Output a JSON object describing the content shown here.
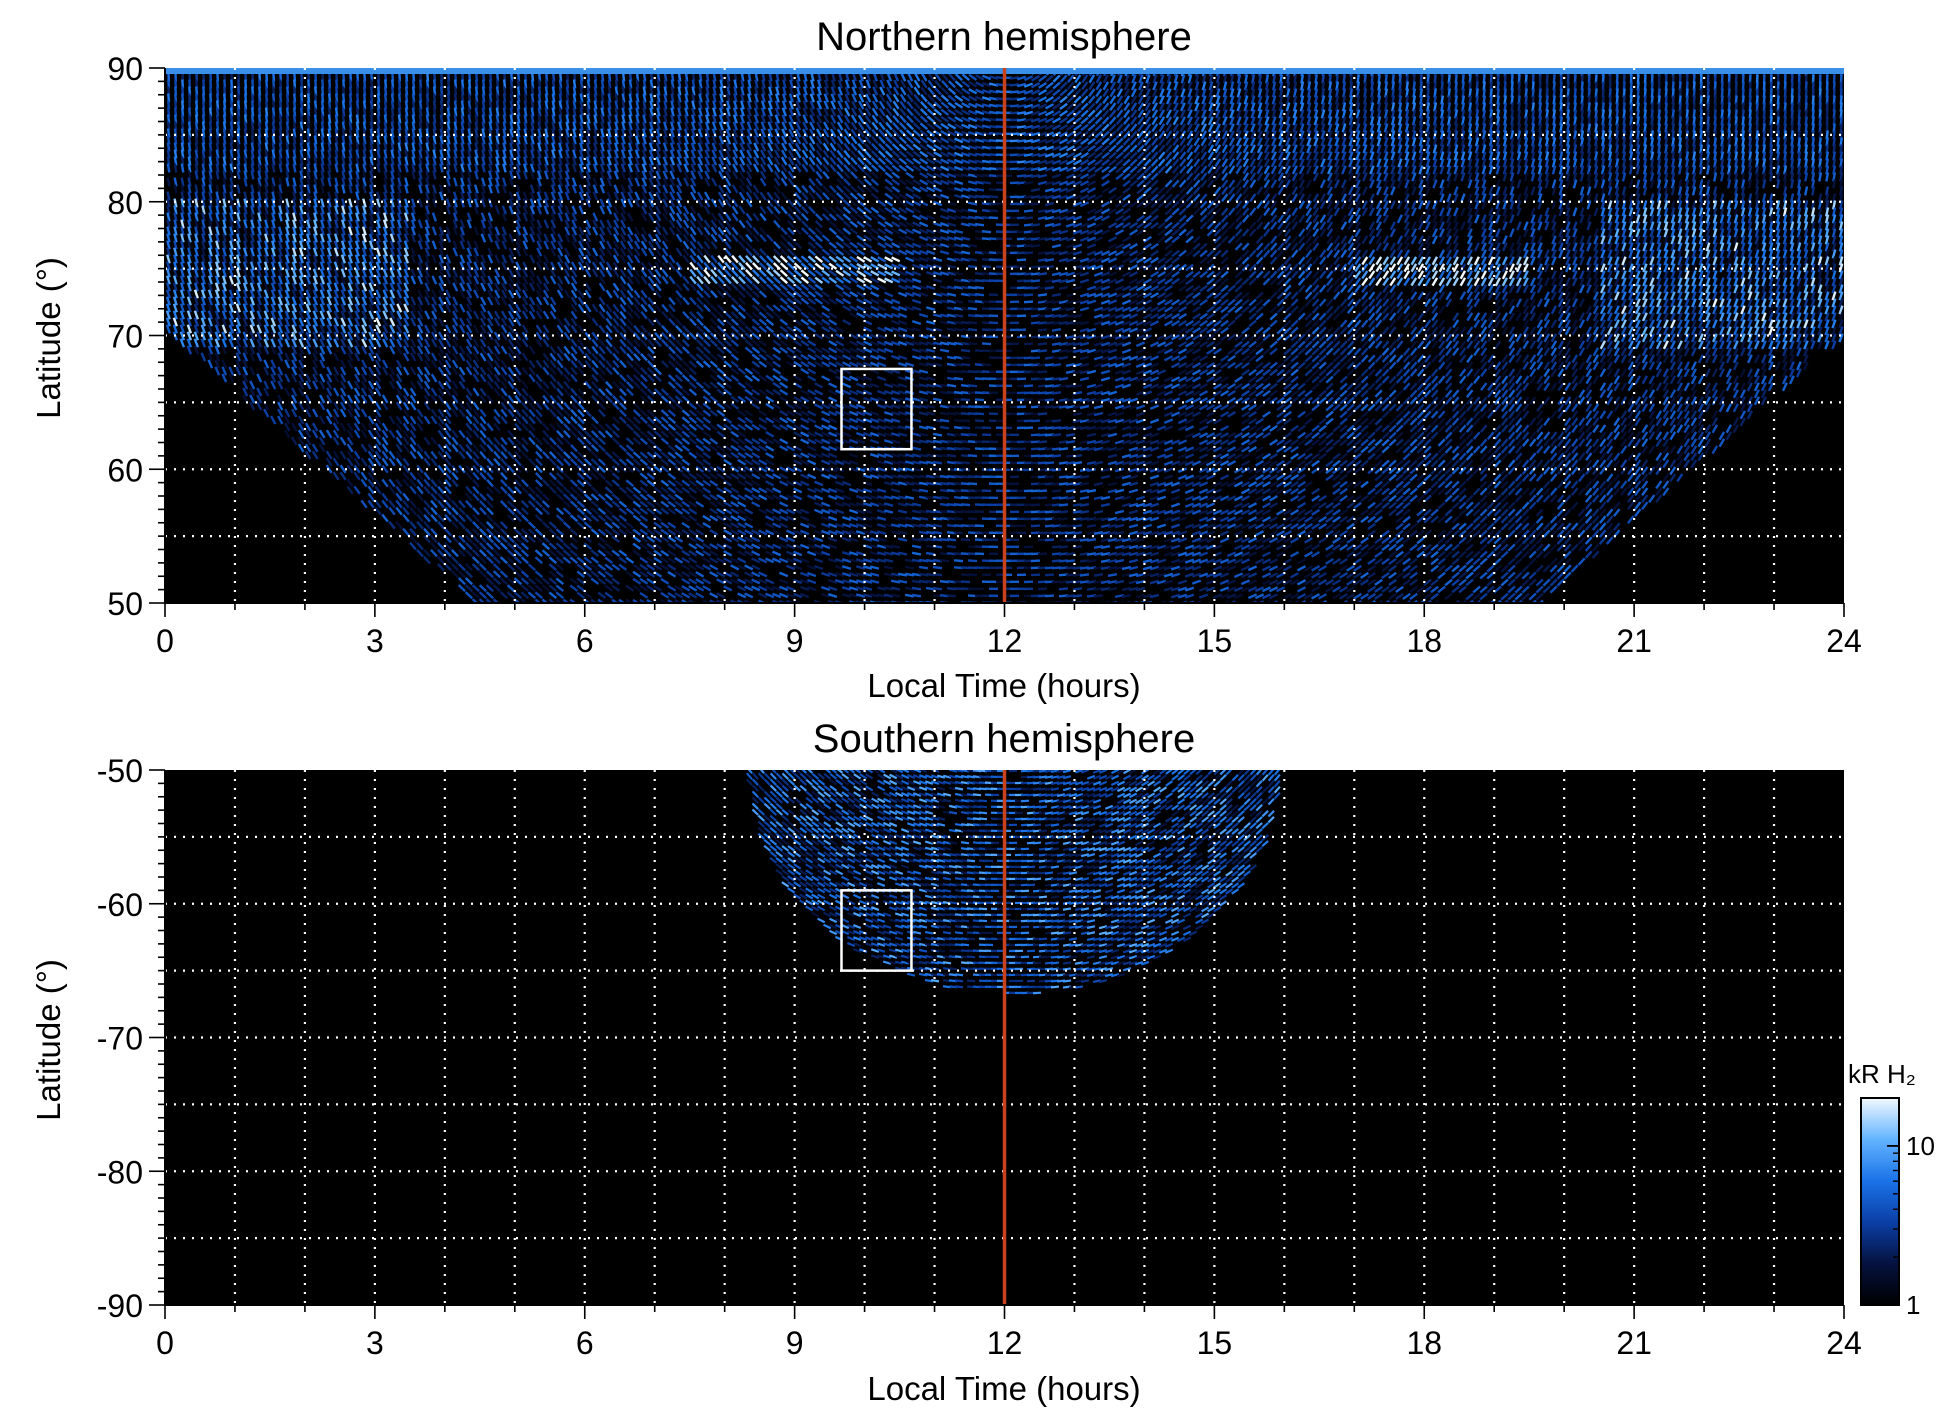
{
  "chart_data": [
    {
      "type": "heatmap",
      "title": "Northern hemisphere",
      "xlabel": "Local Time (hours)",
      "ylabel": "Latitude (°)",
      "xlim": [
        0,
        24
      ],
      "ylim": [
        50,
        90
      ],
      "xticks": [
        0,
        3,
        6,
        9,
        12,
        15,
        18,
        21,
        24
      ],
      "yticks": [
        50,
        60,
        70,
        80,
        90
      ],
      "grid": true,
      "grid_x_step_hours": 1,
      "grid_y_step_deg": 5,
      "noon_line_local_time": 12,
      "box": {
        "x_range": [
          9.67,
          10.67
        ],
        "y_range": [
          61.5,
          67.5
        ]
      },
      "features": [
        {
          "name": "bright auroral band",
          "local_time_range": [
            7.5,
            10.5
          ],
          "latitude": 75
        },
        {
          "name": "bright auroral band",
          "local_time_range": [
            17.0,
            19.5
          ],
          "latitude": 74.5
        },
        {
          "name": "bright emission near limb",
          "local_time_range": [
            0,
            3
          ],
          "latitude_range": [
            71,
            80
          ]
        },
        {
          "name": "bright emission near limb",
          "local_time_range": [
            21,
            24
          ],
          "latitude_range": [
            69,
            80
          ]
        }
      ]
    },
    {
      "type": "heatmap",
      "title": "Southern hemisphere",
      "xlabel": "Local Time (hours)",
      "ylabel": "Latitude (°)",
      "xlim": [
        0,
        24
      ],
      "ylim": [
        -90,
        -50
      ],
      "xticks": [
        0,
        3,
        6,
        9,
        12,
        15,
        18,
        21,
        24
      ],
      "yticks": [
        -90,
        -80,
        -70,
        -60,
        -50
      ],
      "grid": true,
      "grid_x_step_hours": 1,
      "grid_y_step_deg": 5,
      "noon_line_local_time": 12,
      "box": {
        "x_range": [
          9.67,
          10.67
        ],
        "y_range": [
          -65.0,
          -59.0
        ]
      },
      "coverage": {
        "local_time_range": [
          8.3,
          15.9
        ],
        "min_latitude": -66.7
      }
    }
  ],
  "colorbar": {
    "label": "kR H₂",
    "scale": "log",
    "range": [
      1,
      20
    ],
    "ticks": [
      1,
      10
    ],
    "colors": [
      "#000000",
      "#05123f",
      "#0b3fa6",
      "#1a73e8",
      "#63b4ff",
      "#f2f9ff"
    ]
  },
  "noon_line_color": "#c8431d"
}
